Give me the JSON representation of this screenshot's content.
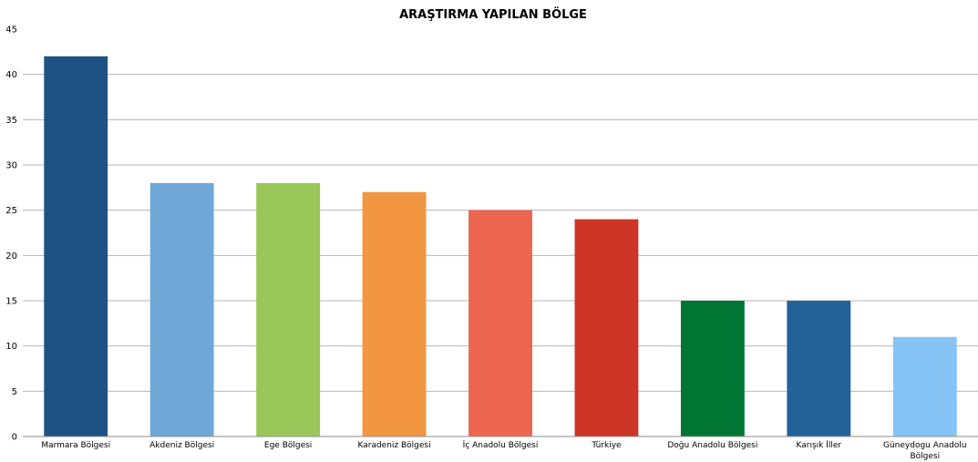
{
  "chart_data": {
    "type": "bar",
    "title": "ARAŞTIRMA YAPILAN BÖLGE",
    "xlabel": "",
    "ylabel": "",
    "ylim": [
      0,
      45
    ],
    "yticks": [
      0,
      5,
      10,
      15,
      20,
      25,
      30,
      35,
      40,
      45
    ],
    "grid": true,
    "legend": "none",
    "categories": [
      [
        "Marmara Bölgesi"
      ],
      [
        "Akdeniz Bölgesi"
      ],
      [
        "Ege Bölgesi"
      ],
      [
        "Karadeniz Bölgesi"
      ],
      [
        "İç Anadolu Bölgesi"
      ],
      [
        "Türkiye"
      ],
      [
        "Doğu Anadolu Bölgesi"
      ],
      [
        "Karışık İller"
      ],
      [
        "Güneydogu Anadolu",
        "Bölgesi"
      ]
    ],
    "values": [
      42,
      28,
      28,
      27,
      25,
      24,
      15,
      15,
      11
    ],
    "colors": [
      "#1f5282",
      "#6fa8d6",
      "#9bc75a",
      "#f39641",
      "#ec6650",
      "#cd3527",
      "#007534",
      "#236299",
      "#86c4f5"
    ]
  }
}
